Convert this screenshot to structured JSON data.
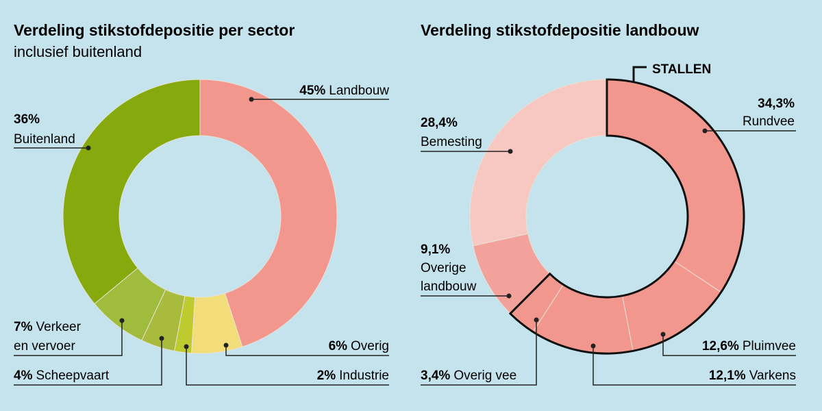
{
  "chart_data": [
    {
      "type": "pie",
      "title": "Verdeling stikstofdepositie per sector",
      "subtitle": "inclusief buitenland",
      "slices": [
        {
          "label": "Landbouw",
          "value": 45,
          "display": "45%",
          "color": "#f2978e"
        },
        {
          "label": "Overig",
          "value": 6,
          "display": "6%",
          "color": "#f2dd78"
        },
        {
          "label": "Industrie",
          "value": 2,
          "display": "2%",
          "color": "#bdcb2f"
        },
        {
          "label": "Scheepvaart",
          "value": 4,
          "display": "4%",
          "color": "#a9bb3d"
        },
        {
          "label": "Verkeer en vervoer",
          "label_lines": [
            "Verkeer",
            "en vervoer"
          ],
          "value": 7,
          "display": "7%",
          "color": "#9fbc3d"
        },
        {
          "label": "Buitenland",
          "value": 36,
          "display": "36%",
          "color": "#86aa0e"
        }
      ]
    },
    {
      "type": "pie",
      "title": "Verdeling stikstofdepositie landbouw",
      "group_label": "STALLEN",
      "slices": [
        {
          "label": "Rundvee",
          "value": 34.3,
          "display": "34,3%",
          "color": "#f2978e"
        },
        {
          "label": "Pluimvee",
          "value": 12.6,
          "display": "12,6%",
          "color": "#f2978e"
        },
        {
          "label": "Varkens",
          "value": 12.1,
          "display": "12,1%",
          "color": "#f2978e"
        },
        {
          "label": "Overig vee",
          "value": 3.4,
          "display": "3,4%",
          "color": "#f2978e"
        },
        {
          "label": "Overige landbouw",
          "label_lines": [
            "Overige",
            "landbouw"
          ],
          "value": 9.1,
          "display": "9,1%",
          "color": "#f2a29a"
        },
        {
          "label": "Bemesting",
          "value": 28.4,
          "display": "28,4%",
          "color": "#f7c7c2"
        }
      ]
    }
  ]
}
